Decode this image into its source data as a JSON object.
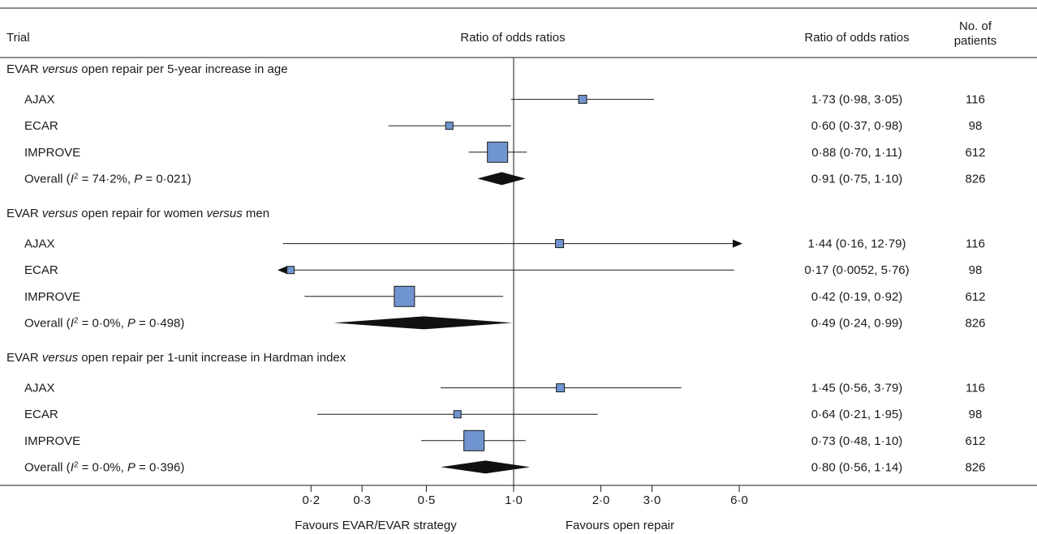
{
  "headers": {
    "trial": "Trial",
    "plot": "Ratio of odds ratios",
    "ror": "Ratio of odds ratios",
    "n_line1": "No. of",
    "n_line2": "patients"
  },
  "footer": {
    "favours_left": "Favours EVAR/EVAR strategy",
    "favours_right": "Favours open repair"
  },
  "chart_data": {
    "type": "forest",
    "title": "",
    "x_scale": "log",
    "reference_value": 1.0,
    "xlim": [
      0.145,
      6.0
    ],
    "xticks": [
      {
        "value": 0.2,
        "label": "0·2"
      },
      {
        "value": 0.3,
        "label": "0·3"
      },
      {
        "value": 0.5,
        "label": "0·5"
      },
      {
        "value": 1.0,
        "label": "1·0"
      },
      {
        "value": 2.0,
        "label": "2·0"
      },
      {
        "value": 3.0,
        "label": "3·0"
      },
      {
        "value": 6.0,
        "label": "6·0"
      }
    ],
    "marker_color": "#7094cf",
    "diamond_color": "#111111",
    "groups": [
      {
        "heading": [
          {
            "text": "EVAR ",
            "italic": false
          },
          {
            "text": "versus",
            "italic": true
          },
          {
            "text": " open repair per 5-year increase in age",
            "italic": false
          }
        ],
        "studies": [
          {
            "name": "AJAX",
            "est": 1.73,
            "lo": 0.98,
            "hi": 3.05,
            "text": "1·73 (0·98, 3·05)",
            "n": "116"
          },
          {
            "name": "ECAR",
            "est": 0.6,
            "lo": 0.37,
            "hi": 0.98,
            "text": "0·60 (0·37, 0·98)",
            "n": "98"
          },
          {
            "name": "IMPROVE",
            "est": 0.88,
            "lo": 0.7,
            "hi": 1.11,
            "text": "0·88 (0·70, 1·11)",
            "n": "612"
          }
        ],
        "overall": {
          "label": [
            {
              "text": "Overall (",
              "italic": false
            },
            {
              "text": "I",
              "italic": true
            },
            {
              "text": "2",
              "sup": true
            },
            {
              "text": " = 74·2%, ",
              "italic": false
            },
            {
              "text": "P",
              "italic": true
            },
            {
              "text": " = 0·021)",
              "italic": false
            }
          ],
          "est": 0.91,
          "lo": 0.75,
          "hi": 1.1,
          "text": "0·91 (0·75, 1·10)",
          "n": "826"
        }
      },
      {
        "heading": [
          {
            "text": "EVAR ",
            "italic": false
          },
          {
            "text": "versus",
            "italic": true
          },
          {
            "text": " open repair for women ",
            "italic": false
          },
          {
            "text": "versus",
            "italic": true
          },
          {
            "text": " men",
            "italic": false
          }
        ],
        "studies": [
          {
            "name": "AJAX",
            "est": 1.44,
            "lo": 0.16,
            "hi": 12.79,
            "text": "1·44 (0·16, 12·79)",
            "n": "116"
          },
          {
            "name": "ECAR",
            "est": 0.17,
            "lo": 0.0052,
            "hi": 5.76,
            "text": "0·17 (0·0052, 5·76)",
            "n": "98"
          },
          {
            "name": "IMPROVE",
            "est": 0.42,
            "lo": 0.19,
            "hi": 0.92,
            "text": "0·42 (0·19, 0·92)",
            "n": "612"
          }
        ],
        "overall": {
          "label": [
            {
              "text": "Overall (",
              "italic": false
            },
            {
              "text": "I",
              "italic": true
            },
            {
              "text": "2",
              "sup": true
            },
            {
              "text": " = 0·0%, ",
              "italic": false
            },
            {
              "text": "P",
              "italic": true
            },
            {
              "text": " = 0·498)",
              "italic": false
            }
          ],
          "est": 0.49,
          "lo": 0.24,
          "hi": 0.99,
          "text": "0·49 (0·24, 0·99)",
          "n": "826"
        }
      },
      {
        "heading": [
          {
            "text": "EVAR ",
            "italic": false
          },
          {
            "text": "versus",
            "italic": true
          },
          {
            "text": " open repair per 1-unit increase in Hardman index",
            "italic": false
          }
        ],
        "studies": [
          {
            "name": "AJAX",
            "est": 1.45,
            "lo": 0.56,
            "hi": 3.79,
            "text": "1·45 (0·56, 3·79)",
            "n": "116"
          },
          {
            "name": "ECAR",
            "est": 0.64,
            "lo": 0.21,
            "hi": 1.95,
            "text": "0·64 (0·21, 1·95)",
            "n": "98"
          },
          {
            "name": "IMPROVE",
            "est": 0.73,
            "lo": 0.48,
            "hi": 1.1,
            "text": "0·73 (0·48, 1·10)",
            "n": "612"
          }
        ],
        "overall": {
          "label": [
            {
              "text": "Overall (",
              "italic": false
            },
            {
              "text": "I",
              "italic": true
            },
            {
              "text": "2",
              "sup": true
            },
            {
              "text": " = 0·0%, ",
              "italic": false
            },
            {
              "text": "P",
              "italic": true
            },
            {
              "text": " = 0·396)",
              "italic": false
            }
          ],
          "est": 0.8,
          "lo": 0.56,
          "hi": 1.14,
          "text": "0·80 (0·56, 1·14)",
          "n": "826"
        }
      }
    ]
  }
}
